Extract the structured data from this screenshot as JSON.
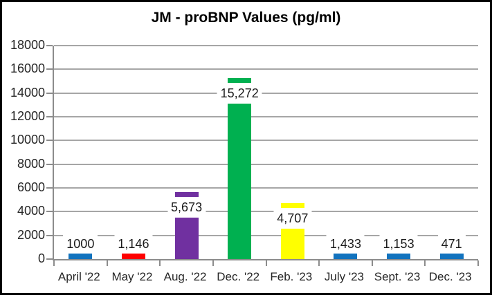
{
  "chart_data": {
    "type": "bar",
    "title": "JM - proBNP Values (pg/ml)",
    "categories": [
      "April '22",
      "May '22",
      "Aug. '22",
      "Dec. '22",
      "Feb. '23",
      "July '23",
      "Sept. '23",
      "Dec. '23"
    ],
    "values": [
      1000,
      1146,
      5673,
      15272,
      4707,
      1433,
      1153,
      471
    ],
    "value_labels": [
      "1000",
      "1,146",
      "5,673",
      "15,272",
      "4,707",
      "1,433",
      "1,153",
      "471"
    ],
    "bar_colors": [
      "#1273BE",
      "#FE0000",
      "#7030A0",
      "#00B050",
      "#FFFF00",
      "#1273BE",
      "#1273BE",
      "#1273BE"
    ],
    "xlabel": "",
    "ylabel": "",
    "ylim": [
      0,
      18000
    ],
    "y_tick_step": 2000,
    "y_tick_labels": [
      "0",
      "2000",
      "4000",
      "6000",
      "8000",
      "10000",
      "12000",
      "14000",
      "16000",
      "18000"
    ],
    "grid": true,
    "legend": false,
    "gridline_color": "#A6A6A6",
    "axis_color": "#8C8C8C",
    "label_inside_threshold": 4000
  }
}
